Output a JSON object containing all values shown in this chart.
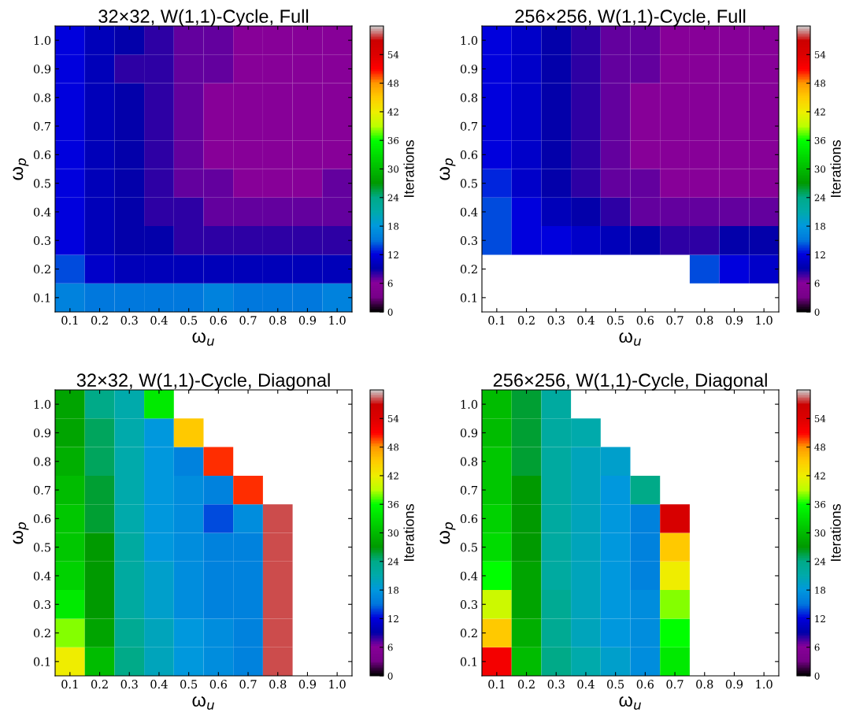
{
  "chart_data": [
    {
      "type": "heatmap",
      "title": "32×32, W(1,1)-Cycle, Full",
      "xlabel": "ω$_{u}$",
      "ylabel": "ω$_{p}$",
      "clabel": "Iterations",
      "categories": [
        "0.1",
        "0.2",
        "0.3",
        "0.4",
        "0.5",
        "0.6",
        "0.7",
        "0.8",
        "0.9",
        "1.0"
      ],
      "y_categories": [
        "1.0",
        "0.9",
        "0.8",
        "0.7",
        "0.6",
        "0.5",
        "0.4",
        "0.3",
        "0.2",
        "0.1"
      ],
      "cells": [
        [
          12,
          10,
          9,
          8,
          7,
          7,
          6,
          6,
          6,
          6
        ],
        [
          12,
          10,
          8,
          8,
          7,
          7,
          6,
          6,
          6,
          6
        ],
        [
          12,
          10,
          9,
          8,
          7,
          6,
          6,
          6,
          6,
          6
        ],
        [
          12,
          10,
          9,
          8,
          7,
          6,
          6,
          6,
          6,
          6
        ],
        [
          12,
          10,
          9,
          8,
          7,
          6,
          6,
          6,
          6,
          6
        ],
        [
          12,
          10,
          9,
          8,
          7,
          7,
          6,
          6,
          6,
          7
        ],
        [
          12,
          10,
          9,
          8,
          8,
          7,
          7,
          7,
          7,
          7
        ],
        [
          12,
          10,
          9,
          9,
          8,
          8,
          8,
          8,
          8,
          8
        ],
        [
          14,
          11,
          10,
          10,
          10,
          10,
          10,
          10,
          10,
          10
        ],
        [
          16,
          15,
          15,
          15,
          15,
          16,
          15,
          15,
          15,
          16
        ]
      ],
      "clim": [
        0,
        60
      ],
      "cticks": [
        0,
        6,
        12,
        18,
        24,
        30,
        36,
        42,
        48,
        54
      ]
    },
    {
      "type": "heatmap",
      "title": "256×256, W(1,1)-Cycle, Full",
      "xlabel": "ω$_{u}$",
      "ylabel": "ω$_{p}$",
      "clabel": "Iterations",
      "categories": [
        "0.1",
        "0.2",
        "0.3",
        "0.4",
        "0.5",
        "0.6",
        "0.7",
        "0.8",
        "0.9",
        "1.0"
      ],
      "y_categories": [
        "1.0",
        "0.9",
        "0.8",
        "0.7",
        "0.6",
        "0.5",
        "0.4",
        "0.3",
        "0.2",
        "0.1"
      ],
      "cells": [
        [
          12,
          11,
          9,
          8,
          7,
          7,
          6,
          6,
          6,
          6
        ],
        [
          12,
          11,
          9,
          8,
          7,
          7,
          6,
          6,
          6,
          6
        ],
        [
          12,
          11,
          9,
          8,
          7,
          6,
          6,
          6,
          6,
          6
        ],
        [
          12,
          11,
          9,
          8,
          7,
          6,
          6,
          6,
          6,
          6
        ],
        [
          12,
          11,
          9,
          8,
          7,
          6,
          6,
          6,
          6,
          6
        ],
        [
          13,
          11,
          9,
          8,
          7,
          7,
          6,
          6,
          6,
          6
        ],
        [
          14,
          12,
          10,
          9,
          8,
          7,
          7,
          7,
          7,
          7
        ],
        [
          14,
          12,
          12,
          11,
          10,
          9,
          8,
          8,
          9,
          9
        ],
        [
          null,
          null,
          null,
          null,
          null,
          null,
          null,
          14,
          12,
          11
        ],
        [
          null,
          null,
          null,
          null,
          null,
          null,
          null,
          null,
          null,
          null
        ]
      ],
      "clim": [
        0,
        60
      ],
      "cticks": [
        0,
        6,
        12,
        18,
        24,
        30,
        36,
        42,
        48,
        54
      ]
    },
    {
      "type": "heatmap",
      "title": "32×32, W(1,1)-Cycle, Diagonal",
      "xlabel": "ω$_{u}$",
      "ylabel": "ω$_{p}$",
      "clabel": "Iterations",
      "categories": [
        "0.1",
        "0.2",
        "0.3",
        "0.4",
        "0.5",
        "0.6",
        "0.7",
        "0.8",
        "0.9",
        "1.0"
      ],
      "y_categories": [
        "1.0",
        "0.9",
        "0.8",
        "0.7",
        "0.6",
        "0.5",
        "0.4",
        "0.3",
        "0.2",
        "0.1"
      ],
      "cells": [
        [
          28,
          24,
          21,
          34,
          null,
          null,
          null,
          null,
          null,
          null
        ],
        [
          28,
          25,
          21,
          18,
          45,
          null,
          null,
          null,
          null,
          null
        ],
        [
          29,
          25,
          21,
          18,
          16,
          50,
          null,
          null,
          null,
          null
        ],
        [
          30,
          26,
          21,
          18,
          17,
          16,
          50,
          null,
          null,
          null
        ],
        [
          31,
          26,
          21,
          18,
          17,
          14,
          17,
          58,
          null,
          null
        ],
        [
          31,
          27,
          22,
          18,
          17,
          16,
          16,
          58,
          null,
          null
        ],
        [
          32,
          27,
          22,
          19,
          17,
          16,
          16,
          58,
          null,
          null
        ],
        [
          34,
          27,
          22,
          19,
          17,
          16,
          16,
          58,
          null,
          null
        ],
        [
          38,
          28,
          23,
          20,
          18,
          17,
          16,
          58,
          null,
          null
        ],
        [
          42,
          30,
          24,
          20,
          18,
          17,
          16,
          58,
          null,
          null
        ]
      ],
      "clim": [
        0,
        60
      ],
      "cticks": [
        0,
        6,
        12,
        18,
        24,
        30,
        36,
        42,
        48,
        54
      ]
    },
    {
      "type": "heatmap",
      "title": "256×256, W(1,1)-Cycle, Diagonal",
      "xlabel": "ω$_{u}$",
      "ylabel": "ω$_{p}$",
      "clabel": "Iterations",
      "categories": [
        "0.1",
        "0.2",
        "0.3",
        "0.4",
        "0.5",
        "0.6",
        "0.7",
        "0.8",
        "0.9",
        "1.0"
      ],
      "y_categories": [
        "1.0",
        "0.9",
        "0.8",
        "0.7",
        "0.6",
        "0.5",
        "0.4",
        "0.3",
        "0.2",
        "0.1"
      ],
      "cells": [
        [
          30,
          26,
          22,
          null,
          null,
          null,
          null,
          null,
          null,
          null
        ],
        [
          30,
          26,
          22,
          21,
          null,
          null,
          null,
          null,
          null,
          null
        ],
        [
          31,
          26,
          22,
          20,
          19,
          null,
          null,
          null,
          null,
          null
        ],
        [
          31,
          27,
          22,
          20,
          18,
          24,
          null,
          null,
          null,
          null
        ],
        [
          32,
          27,
          22,
          20,
          18,
          16,
          55,
          null,
          null,
          null
        ],
        [
          33,
          27,
          22,
          20,
          18,
          16,
          45,
          null,
          null,
          null
        ],
        [
          36,
          28,
          22,
          20,
          18,
          16,
          42,
          null,
          null,
          null
        ],
        [
          40,
          28,
          23,
          20,
          18,
          17,
          38,
          null,
          null,
          null
        ],
        [
          45,
          29,
          23,
          20,
          18,
          17,
          36,
          null,
          null,
          null
        ],
        [
          52,
          30,
          24,
          21,
          19,
          17,
          34,
          null,
          null,
          null
        ]
      ],
      "clim": [
        0,
        60
      ],
      "cticks": [
        0,
        6,
        12,
        18,
        24,
        30,
        36,
        42,
        48,
        54
      ]
    }
  ]
}
